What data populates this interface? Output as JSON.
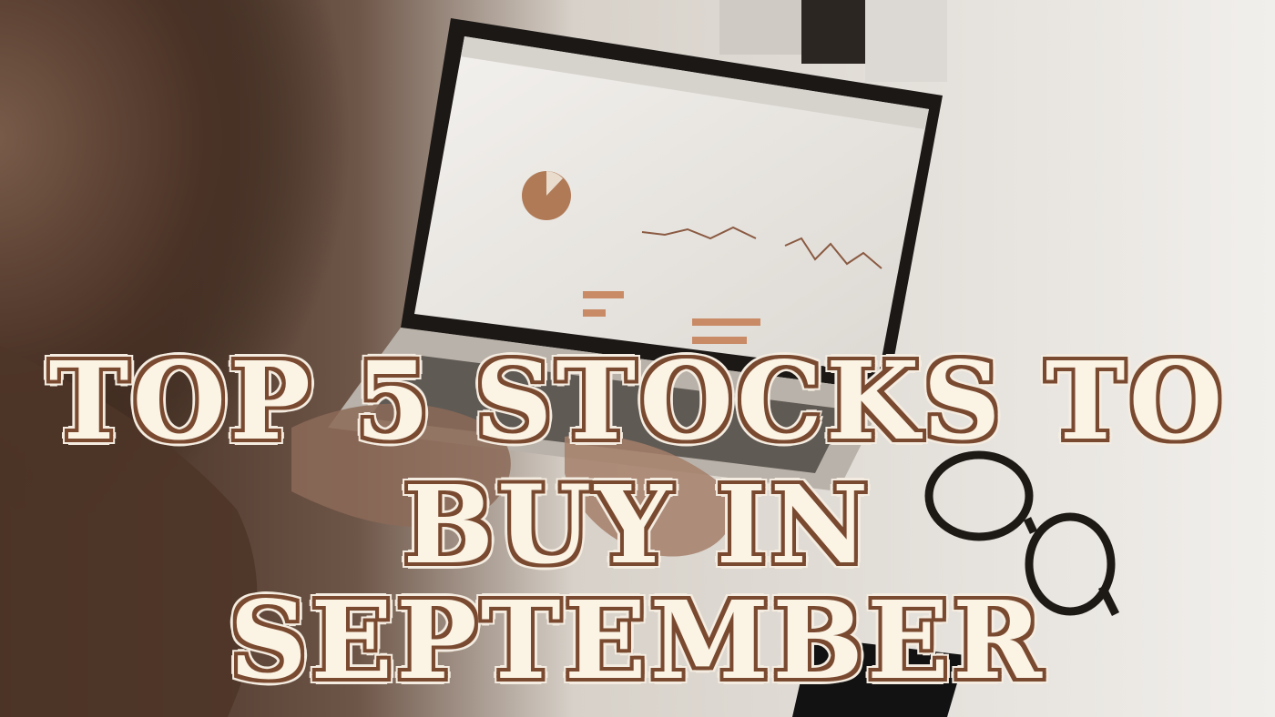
{
  "headline": {
    "line1": "TOP 5 STOCKS TO",
    "line2": "BUY IN",
    "line3": "SEPTEMBER"
  },
  "background": {
    "subject": "person typing on laptop showing analytics dashboard"
  },
  "colors": {
    "text_fill": "#fbf3e4",
    "text_outline": "#7a4a30",
    "dark_shadow": "#3a2418"
  }
}
